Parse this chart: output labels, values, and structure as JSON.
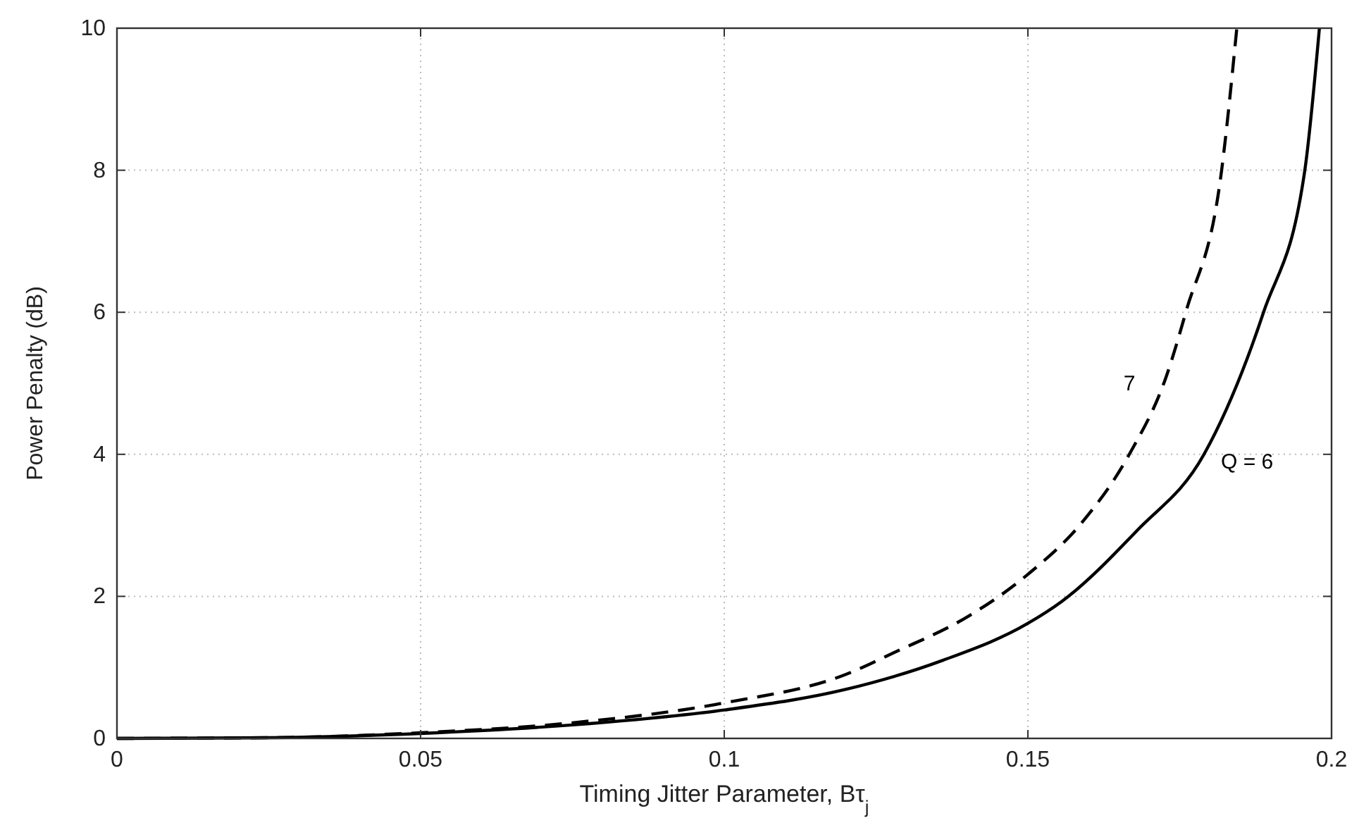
{
  "chart_data": {
    "type": "line",
    "xlabel": "Timing Jitter Parameter, Bτ$_{j}$",
    "ylabel": "Power Penalty (dB)",
    "xlim": [
      0,
      0.2
    ],
    "ylim": [
      0,
      10
    ],
    "xticks": [
      0,
      0.05,
      0.1,
      0.15,
      0.2
    ],
    "yticks": [
      0,
      2,
      4,
      6,
      8,
      10
    ],
    "grid": true,
    "series": [
      {
        "name": "Q = 6",
        "color": "#000000",
        "line_style": "solid",
        "x": [
          0,
          0.025,
          0.05,
          0.075,
          0.1,
          0.12,
          0.136,
          0.15,
          0.1556,
          0.168,
          0.179,
          0.1888,
          0.1956,
          0.198
        ],
        "values": [
          0,
          0.01,
          0.07,
          0.19,
          0.4,
          0.69,
          1.1,
          1.62,
          1.93,
          2.93,
          4,
          6,
          8,
          10
        ]
      },
      {
        "name": "7",
        "color": "#000000",
        "line_style": "dashed",
        "x": [
          0,
          0.025,
          0.05,
          0.075,
          0.1,
          0.12,
          0.128,
          0.1402,
          0.15,
          0.1588,
          0.1667,
          0.1728,
          0.176,
          0.1819,
          0.1844
        ],
        "values": [
          0,
          0.01,
          0.08,
          0.22,
          0.5,
          0.9,
          1.21,
          1.72,
          2.31,
          3.03,
          4,
          5.1,
          6,
          8,
          10
        ]
      }
    ]
  }
}
